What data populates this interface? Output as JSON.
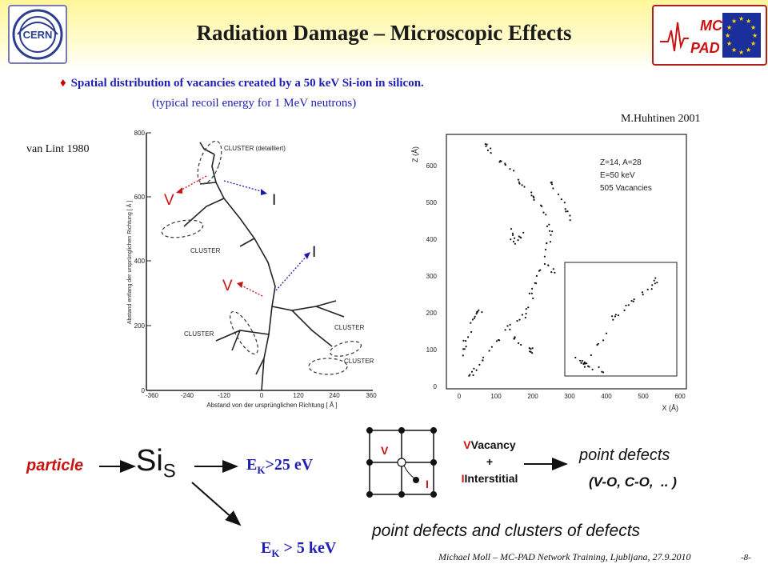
{
  "title": "Radiation Damage – Microscopic Effects",
  "logos": {
    "left_text": "CERN",
    "right_text_top": "MC",
    "right_text_bottom": "PAD"
  },
  "bullet": {
    "symbol": "♦",
    "text": "Spatial distribution of vacancies created by a 50 keV Si-ion in silicon."
  },
  "subline": "(typical recoil energy for 1 MeV neutrons)",
  "credits": {
    "left": "van Lint 1980",
    "right": "M.Huhtinen 2001"
  },
  "left_figure": {
    "y_ticks": [
      "800",
      "600",
      "400",
      "200",
      "0"
    ],
    "x_ticks": [
      "-360",
      "-240",
      "-120",
      "0",
      "120",
      "240",
      "360"
    ],
    "y_axis_label": "Abstand entlang der ursprünglichen Richtung [ Å ]",
    "x_axis_label": "Abstand von der ursprünglichen Richtung   [ Å ]",
    "cluster_labels": [
      "CLUSTER (detailliert)",
      "CLUSTER",
      "CLUSTER",
      "CLUSTER",
      "CLUSTER"
    ],
    "markers": [
      "V",
      "I",
      "I",
      "V"
    ]
  },
  "right_figure": {
    "y_ticks": [
      "600",
      "500",
      "400",
      "300",
      "200",
      "100",
      "0"
    ],
    "x_ticks": [
      "0",
      "100",
      "200",
      "300",
      "400",
      "500",
      "600"
    ],
    "y_label": "Z (Å)",
    "x_label": "X (Å)",
    "legend": [
      "Z=14, A=28",
      "E=50 keV",
      "505 Vacancies"
    ]
  },
  "flow": {
    "particle": "particle",
    "sis_main": "Si",
    "sis_sub": "S",
    "ek_main": "E",
    "ek_sub": "K",
    "ek1_rest": ">25 eV",
    "ek2_rest": " > 5 keV",
    "lattice_v": "V",
    "lattice_i": "I",
    "vacancy_word": "Vacancy",
    "plus": "+",
    "interstitial_word": "Interstitial",
    "point_defects": "point defects",
    "point_defects_examples": "(V-O, C-O,  .. )",
    "clusters_text": "point defects and clusters of defects"
  },
  "footer": {
    "author": "Michael Moll – MC-PAD Network Training, Ljubljana, 27.9.2010",
    "page": "-8-"
  }
}
